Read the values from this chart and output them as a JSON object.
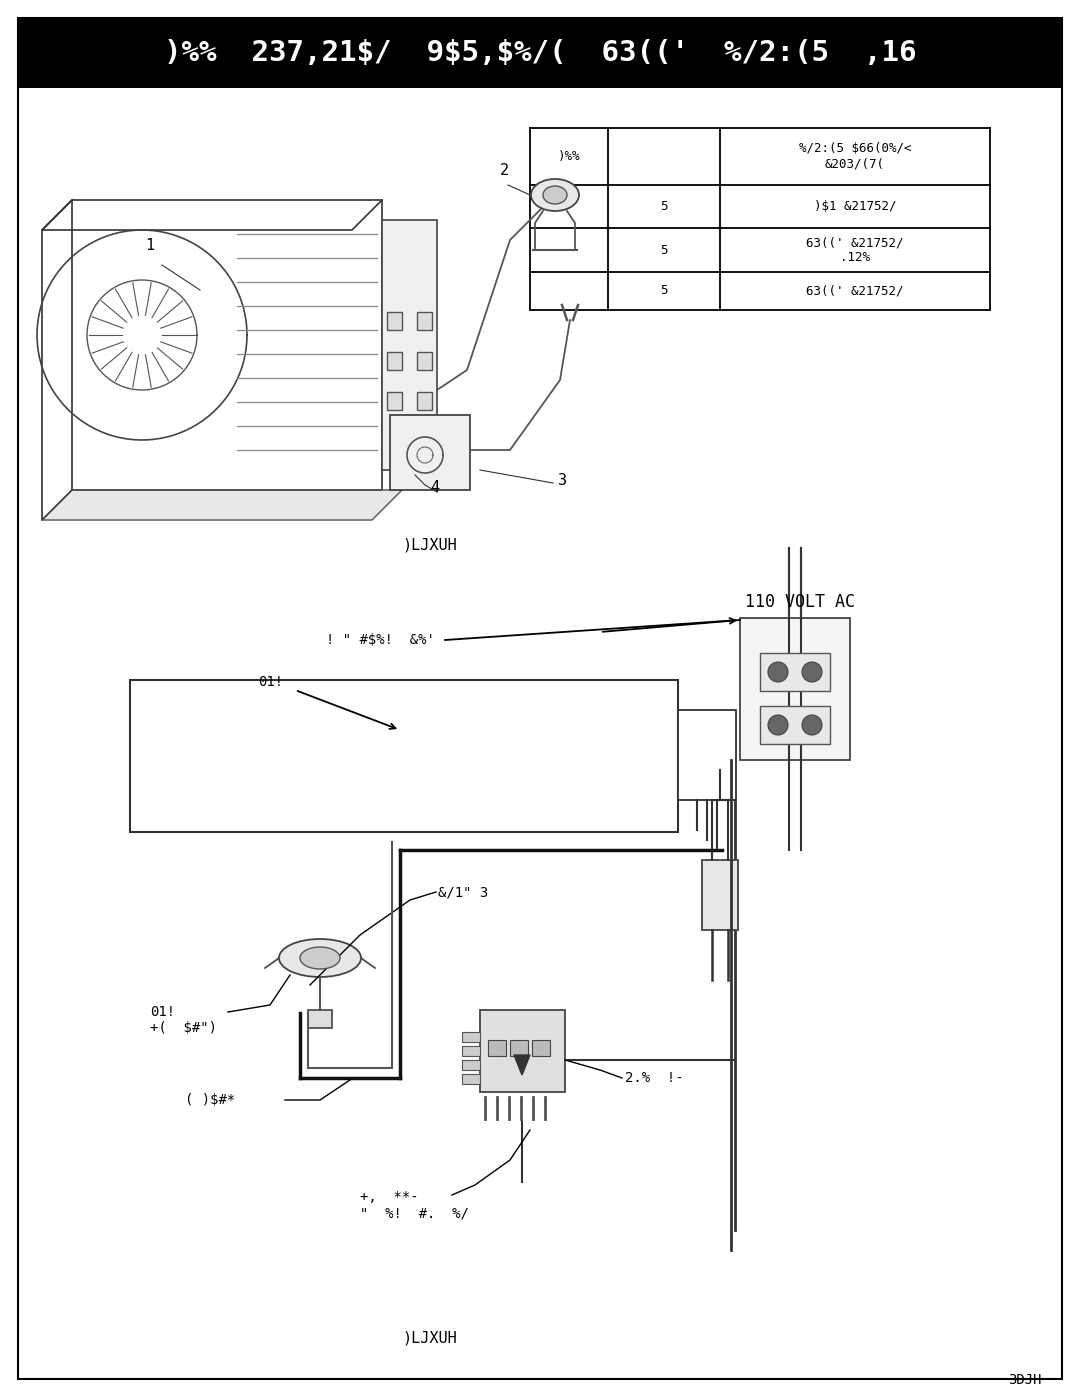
{
  "page_bg": "#ffffff",
  "header_bg": "#000000",
  "header_text": ")%%  237,21$/  9$5,$%/(  63(('  %/2:(5  ,16",
  "header_text_color": "#ffffff",
  "header_fontsize": 21,
  "table_col0_header": ")%%",
  "table_col1_header": "%/2:(5 $66(0%/<\n&203/(7(",
  "table_rows": [
    [
      "5",
      ")$1 &21752/"
    ],
    [
      "5",
      "63((' &21752/\n.12%"
    ],
    [
      "5",
      "63((' &21752/"
    ]
  ],
  "fig1_caption": ")LJXUH",
  "fig2_caption": ")LJXUH",
  "volt_label": "110 VOLT AC",
  "label1": "! \" #$%!  &%'",
  "label2": "01!",
  "label3": "&/1\" 3",
  "label4": "01!\n+(  $#\")",
  "label5": "( )$#*",
  "label6": "+,  **-\n\"  %!  #.  %/",
  "label7": "2.%  !-",
  "page_label": "3DJH",
  "font": "monospace"
}
